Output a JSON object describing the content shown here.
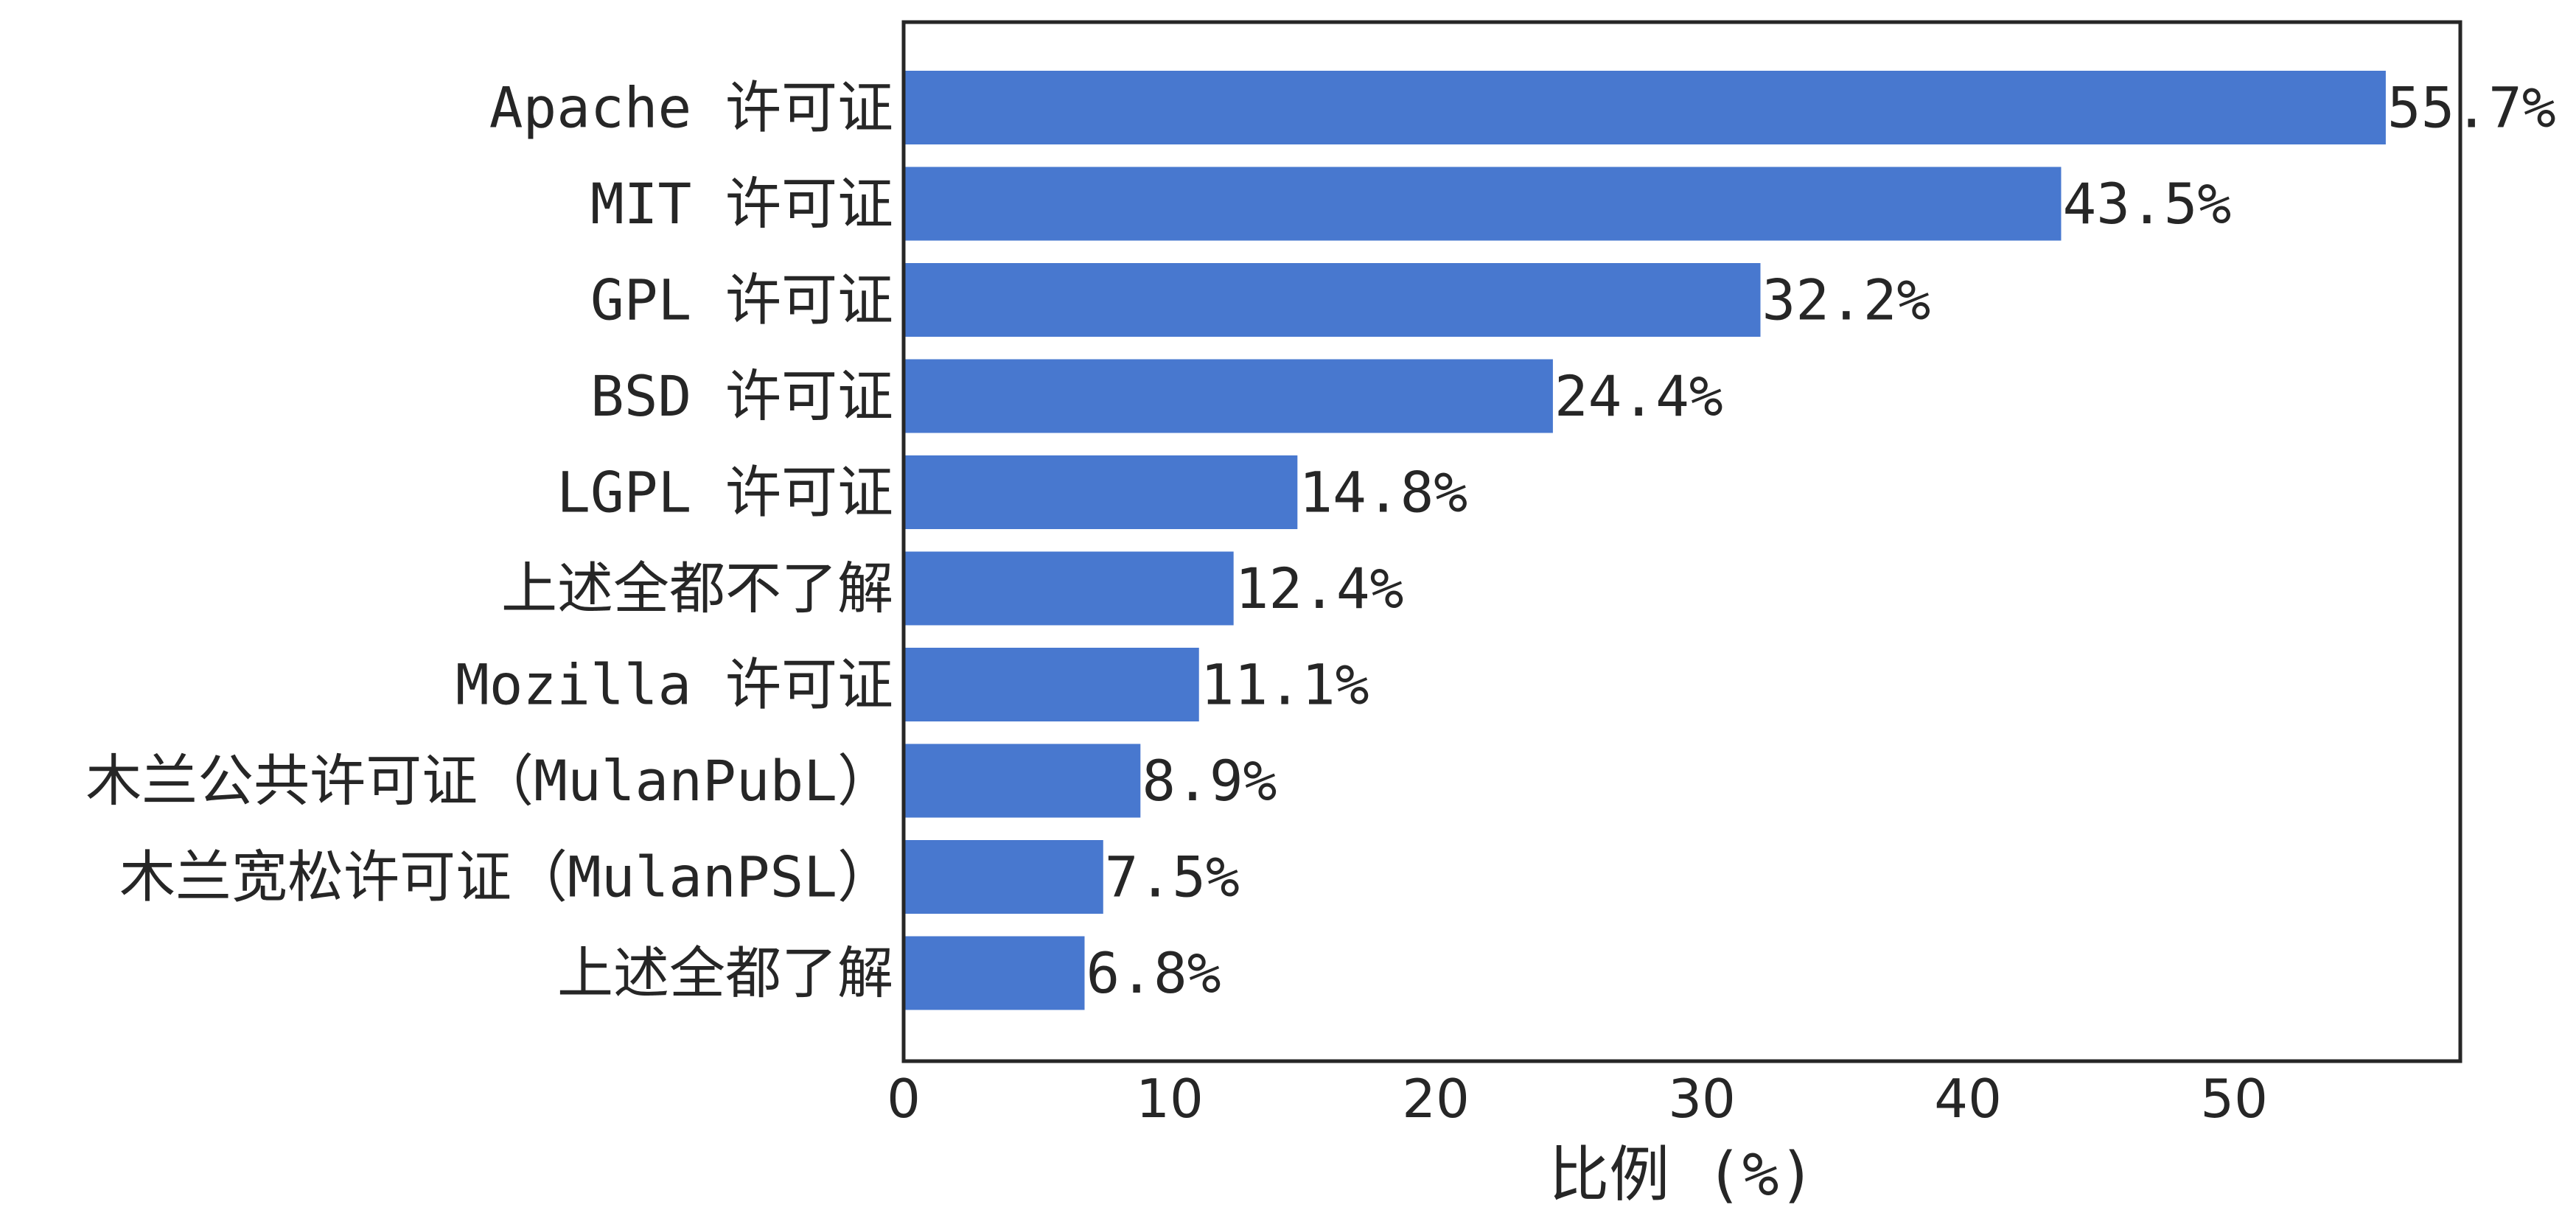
{
  "chart_data": {
    "type": "bar",
    "orientation": "horizontal",
    "categories": [
      "Apache 许可证",
      "MIT 许可证",
      "GPL 许可证",
      "BSD 许可证",
      "LGPL 许可证",
      "上述全都不了解",
      "Mozilla 许可证",
      "木兰公共许可证（MulanPubL）",
      "木兰宽松许可证（MulanPSL）",
      "上述全都了解"
    ],
    "values": [
      55.7,
      43.5,
      32.2,
      24.4,
      14.8,
      12.4,
      11.1,
      8.9,
      7.5,
      6.8
    ],
    "value_labels": [
      "55.7%",
      "43.5%",
      "32.2%",
      "24.4%",
      "14.8%",
      "12.4%",
      "11.1%",
      "8.9%",
      "7.5%",
      "6.8%"
    ],
    "xlabel": "比例 (%)",
    "ylabel": "",
    "xlim": [
      0,
      58.5
    ],
    "xticks": [
      0,
      10,
      20,
      30,
      40,
      50
    ],
    "xtick_labels": [
      "0",
      "10",
      "20",
      "30",
      "40",
      "50"
    ],
    "grid": false,
    "bar_color": "#4878CF",
    "text_color": "#262626",
    "frame_color": "#262626"
  }
}
